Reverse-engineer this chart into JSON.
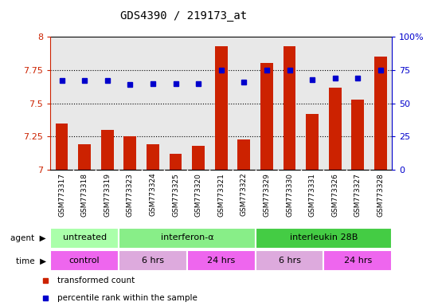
{
  "title": "GDS4390 / 219173_at",
  "samples": [
    "GSM773317",
    "GSM773318",
    "GSM773319",
    "GSM773323",
    "GSM773324",
    "GSM773325",
    "GSM773320",
    "GSM773321",
    "GSM773322",
    "GSM773329",
    "GSM773330",
    "GSM773331",
    "GSM773326",
    "GSM773327",
    "GSM773328"
  ],
  "red_values": [
    7.35,
    7.19,
    7.3,
    7.25,
    7.19,
    7.12,
    7.18,
    7.93,
    7.23,
    7.8,
    7.93,
    7.42,
    7.62,
    7.53,
    7.85
  ],
  "blue_values": [
    67,
    67,
    67,
    64,
    65,
    65,
    65,
    75,
    66,
    75,
    75,
    68,
    69,
    69,
    75
  ],
  "ylim_left": [
    7.0,
    8.0
  ],
  "ylim_right": [
    0,
    100
  ],
  "yticks_left": [
    7.0,
    7.25,
    7.5,
    7.75,
    8.0
  ],
  "yticks_right": [
    0,
    25,
    50,
    75,
    100
  ],
  "ytick_labels_left": [
    "7",
    "7.25",
    "7.5",
    "7.75",
    "8"
  ],
  "ytick_labels_right": [
    "0",
    "25",
    "50",
    "75",
    "100%"
  ],
  "hlines": [
    7.25,
    7.5,
    7.75
  ],
  "agent_groups": [
    {
      "label": "untreated",
      "start": 0,
      "end": 3,
      "color": "#aaffaa"
    },
    {
      "label": "interferon-α",
      "start": 3,
      "end": 9,
      "color": "#88ee88"
    },
    {
      "label": "interleukin 28B",
      "start": 9,
      "end": 15,
      "color": "#44cc44"
    }
  ],
  "time_groups": [
    {
      "label": "control",
      "start": 0,
      "end": 3,
      "color": "#ee66ee"
    },
    {
      "label": "6 hrs",
      "start": 3,
      "end": 6,
      "color": "#ddaadd"
    },
    {
      "label": "24 hrs",
      "start": 6,
      "end": 9,
      "color": "#ee66ee"
    },
    {
      "label": "6 hrs",
      "start": 9,
      "end": 12,
      "color": "#ddaadd"
    },
    {
      "label": "24 hrs",
      "start": 12,
      "end": 15,
      "color": "#ee66ee"
    }
  ],
  "bar_color": "#cc2200",
  "dot_color": "#0000cc",
  "background_color": "#ffffff",
  "plot_bg": "#e8e8e8",
  "tick_bg": "#d8d8d8",
  "legend_items": [
    {
      "color": "#cc2200",
      "label": "transformed count"
    },
    {
      "color": "#0000cc",
      "label": "percentile rank within the sample"
    }
  ]
}
